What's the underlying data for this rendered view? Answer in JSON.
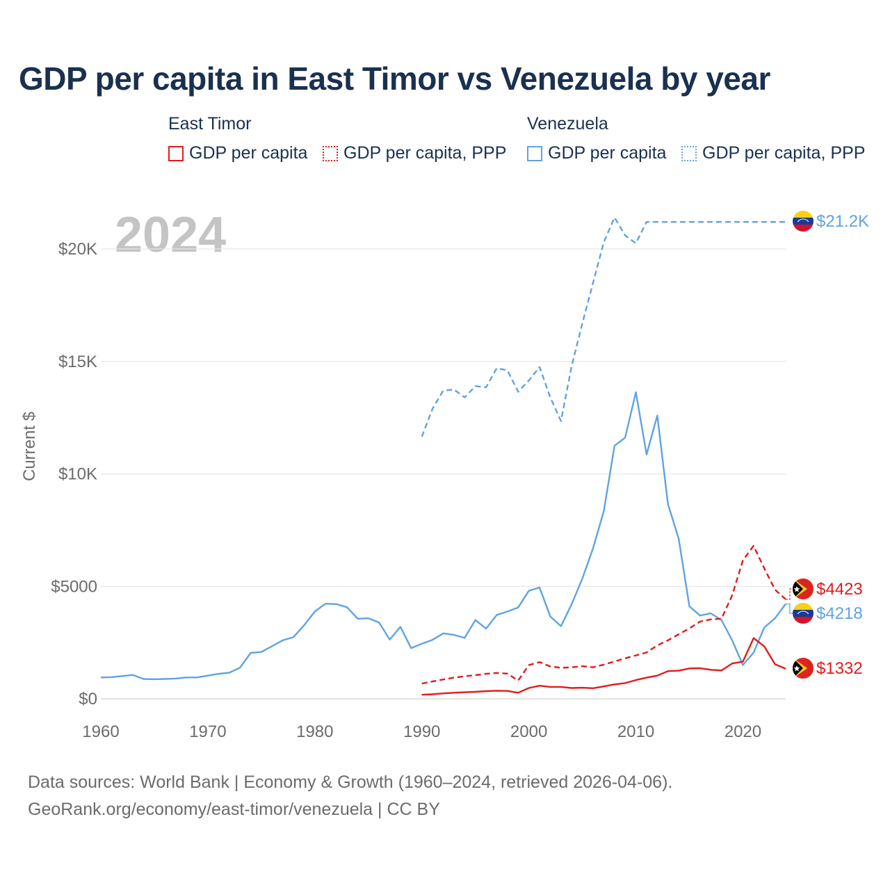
{
  "title": "GDP per capita in East Timor vs Venezuela by year",
  "legend": {
    "groups": [
      {
        "name": "East Timor",
        "color": "#e31a1c",
        "items": [
          {
            "label": "GDP per capita",
            "style": "solid"
          },
          {
            "label": "GDP per capita, PPP",
            "style": "dotted"
          }
        ]
      },
      {
        "name": "Venezuela",
        "color": "#5fa3e0",
        "items": [
          {
            "label": "GDP per capita",
            "style": "solid"
          },
          {
            "label": "GDP per capita, PPP",
            "style": "dotted"
          }
        ]
      }
    ]
  },
  "sources": {
    "line1": "Data sources: World Bank | Economy & Growth (1960–2024, retrieved 2026-04-06).",
    "line2": "GeoRank.org/economy/east-timor/venezuela | CC BY"
  },
  "chart_data": {
    "type": "line",
    "title": "GDP per capita in East Timor vs Venezuela by year",
    "year_label": "2024",
    "xlabel": "",
    "ylabel": "Current $",
    "xlim": [
      1960,
      2024
    ],
    "ylim": [
      0,
      22000
    ],
    "x_ticks": [
      1960,
      1970,
      1980,
      1990,
      2000,
      2010,
      2020
    ],
    "y_ticks": [
      {
        "value": 0,
        "label": "$0"
      },
      {
        "value": 5000,
        "label": "$5000"
      },
      {
        "value": 10000,
        "label": "$10K"
      },
      {
        "value": 15000,
        "label": "$15K"
      },
      {
        "value": 20000,
        "label": "$20K"
      }
    ],
    "series": [
      {
        "name": "Venezuela GDP per capita",
        "country": "Venezuela",
        "color": "#5fa3e0",
        "dash": "solid",
        "end_label": "$4218",
        "x": [
          1960,
          1961,
          1962,
          1963,
          1964,
          1965,
          1966,
          1967,
          1968,
          1969,
          1970,
          1971,
          1972,
          1973,
          1974,
          1975,
          1976,
          1977,
          1978,
          1979,
          1980,
          1981,
          1982,
          1983,
          1984,
          1985,
          1986,
          1987,
          1988,
          1989,
          1990,
          1991,
          1992,
          1993,
          1994,
          1995,
          1996,
          1997,
          1998,
          1999,
          2000,
          2001,
          2002,
          2003,
          2004,
          2005,
          2006,
          2007,
          2008,
          2009,
          2010,
          2011,
          2012,
          2013,
          2014,
          2015,
          2016,
          2017,
          2018,
          2019,
          2020,
          2021,
          2022,
          2023,
          2024
        ],
        "y": [
          950,
          960,
          1010,
          1060,
          880,
          870,
          880,
          900,
          950,
          950,
          1030,
          1110,
          1160,
          1380,
          2040,
          2080,
          2340,
          2600,
          2740,
          3270,
          3880,
          4230,
          4210,
          4070,
          3560,
          3580,
          3390,
          2630,
          3200,
          2250,
          2450,
          2620,
          2910,
          2840,
          2710,
          3500,
          3120,
          3730,
          3880,
          4060,
          4800,
          4950,
          3660,
          3230,
          4210,
          5350,
          6700,
          8350,
          11250,
          11610,
          13630,
          10860,
          12590,
          8650,
          7120,
          4110,
          3700,
          3800,
          3500,
          2600,
          1500,
          2050,
          3170,
          3580,
          4218
        ]
      },
      {
        "name": "Venezuela GDP per capita, PPP",
        "country": "Venezuela",
        "color": "#5fa3e0",
        "dash": "dashed",
        "end_label": "$21.2K",
        "x": [
          1990,
          1991,
          1992,
          1993,
          1994,
          1995,
          1996,
          1997,
          1998,
          1999,
          2000,
          2001,
          2002,
          2003,
          2004,
          2005,
          2006,
          2007,
          2008,
          2009,
          2010,
          2011,
          2024
        ],
        "y": [
          11650,
          12900,
          13700,
          13750,
          13400,
          13900,
          13850,
          14700,
          14600,
          13650,
          14150,
          14750,
          13400,
          12350,
          14800,
          16700,
          18500,
          20300,
          21400,
          20600,
          20250,
          21200,
          21200
        ]
      },
      {
        "name": "East Timor GDP per capita, PPP",
        "country": "East Timor",
        "color": "#e31a1c",
        "dash": "dashed",
        "end_label": "$4423",
        "x": [
          1990,
          1991,
          1992,
          1993,
          1994,
          1995,
          1996,
          1997,
          1998,
          1999,
          2000,
          2001,
          2002,
          2003,
          2004,
          2005,
          2006,
          2007,
          2008,
          2009,
          2010,
          2011,
          2012,
          2013,
          2014,
          2015,
          2016,
          2017,
          2018,
          2019,
          2020,
          2021,
          2022,
          2023,
          2024
        ],
        "y": [
          680,
          770,
          860,
          940,
          1000,
          1050,
          1110,
          1150,
          1120,
          810,
          1500,
          1630,
          1440,
          1380,
          1400,
          1450,
          1400,
          1520,
          1660,
          1800,
          1930,
          2060,
          2370,
          2600,
          2870,
          3130,
          3430,
          3530,
          3560,
          4600,
          6150,
          6800,
          5800,
          4850,
          4423
        ]
      },
      {
        "name": "East Timor GDP per capita",
        "country": "East Timor",
        "color": "#e31a1c",
        "dash": "solid",
        "end_label": "$1332",
        "x": [
          1990,
          1991,
          1992,
          1993,
          1994,
          1995,
          1996,
          1997,
          1998,
          1999,
          2000,
          2001,
          2002,
          2003,
          2004,
          2005,
          2006,
          2007,
          2008,
          2009,
          2010,
          2011,
          2012,
          2013,
          2014,
          2015,
          2016,
          2017,
          2018,
          2019,
          2020,
          2021,
          2022,
          2023,
          2024
        ],
        "y": [
          180,
          200,
          240,
          270,
          290,
          310,
          340,
          360,
          350,
          270,
          480,
          580,
          530,
          530,
          480,
          490,
          470,
          550,
          640,
          700,
          830,
          940,
          1030,
          1230,
          1250,
          1350,
          1360,
          1290,
          1260,
          1570,
          1650,
          2700,
          2330,
          1540,
          1332
        ]
      }
    ]
  }
}
